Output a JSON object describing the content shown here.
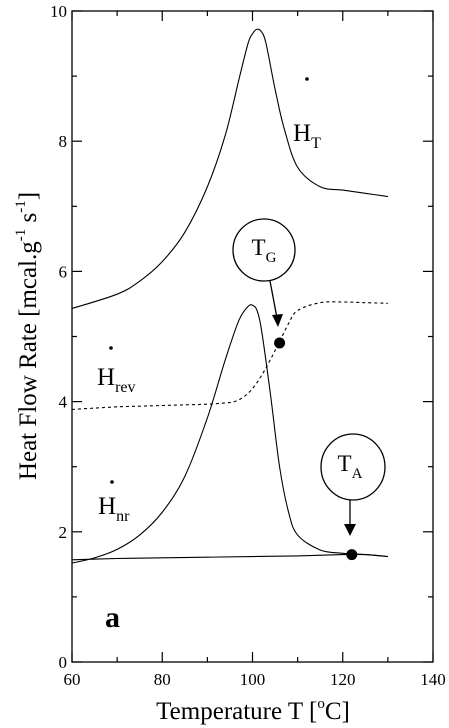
{
  "chart_data": {
    "type": "line",
    "title": "",
    "xlabel": "Temperature T",
    "xunit": "C",
    "xunit_sup": "o",
    "ylabel": "Heat Flow Rate",
    "yunit": "mcal.g",
    "yunit_sup1": "-1",
    "yunit_mid": "s",
    "yunit_sup2": "-1",
    "xlim": [
      60,
      140
    ],
    "ylim": [
      0,
      10
    ],
    "xticks": [
      "60",
      "80",
      "100",
      "120",
      "140"
    ],
    "yticks": [
      "0",
      "2",
      "4",
      "6",
      "8",
      "10"
    ],
    "panel_letter": "a",
    "series": [
      {
        "name": "HT",
        "label_main": "H",
        "label_sub": "T",
        "style": "solid",
        "x": [
          60,
          70,
          75,
          80,
          85,
          90,
          94,
          97,
          99,
          100,
          101,
          102,
          103,
          105,
          107,
          110,
          115,
          120,
          125,
          130
        ],
        "y": [
          5.43,
          5.65,
          5.85,
          6.15,
          6.6,
          7.3,
          8.1,
          8.95,
          9.5,
          9.65,
          9.72,
          9.68,
          9.5,
          8.8,
          8.2,
          7.6,
          7.3,
          7.25,
          7.2,
          7.15
        ]
      },
      {
        "name": "Hrev",
        "label_main": "H",
        "label_sub": "rev",
        "style": "dashed",
        "x": [
          60,
          65,
          70,
          75,
          80,
          85,
          90,
          94,
          96,
          98,
          100,
          102,
          104,
          106,
          108,
          110,
          115,
          120,
          125,
          130
        ],
        "y": [
          3.88,
          3.9,
          3.92,
          3.93,
          3.94,
          3.95,
          3.96,
          3.98,
          4.0,
          4.07,
          4.2,
          4.4,
          4.65,
          4.92,
          5.2,
          5.4,
          5.52,
          5.53,
          5.52,
          5.51
        ]
      },
      {
        "name": "Hnr",
        "label_main": "H",
        "label_sub": "nr",
        "style": "solid",
        "x": [
          60,
          65,
          70,
          75,
          80,
          85,
          90,
          94,
          97,
          99,
          100,
          101,
          102,
          104,
          106,
          108,
          110,
          115,
          120,
          125,
          130
        ],
        "y": [
          1.52,
          1.6,
          1.73,
          1.95,
          2.3,
          2.85,
          3.75,
          4.65,
          5.25,
          5.46,
          5.48,
          5.4,
          5.1,
          4.1,
          3.0,
          2.3,
          1.95,
          1.72,
          1.67,
          1.65,
          1.62
        ]
      },
      {
        "name": "baseline",
        "style": "solid",
        "x": [
          60,
          70,
          80,
          90,
          100,
          110,
          120,
          125,
          130
        ],
        "y": [
          1.57,
          1.59,
          1.6,
          1.61,
          1.62,
          1.63,
          1.65,
          1.65,
          1.62
        ]
      }
    ],
    "markers": [
      {
        "label_main": "T",
        "label_sub": "G",
        "x": 106,
        "y": 4.9
      },
      {
        "label_main": "T",
        "label_sub": "A",
        "x": 122,
        "y": 1.65
      }
    ]
  }
}
